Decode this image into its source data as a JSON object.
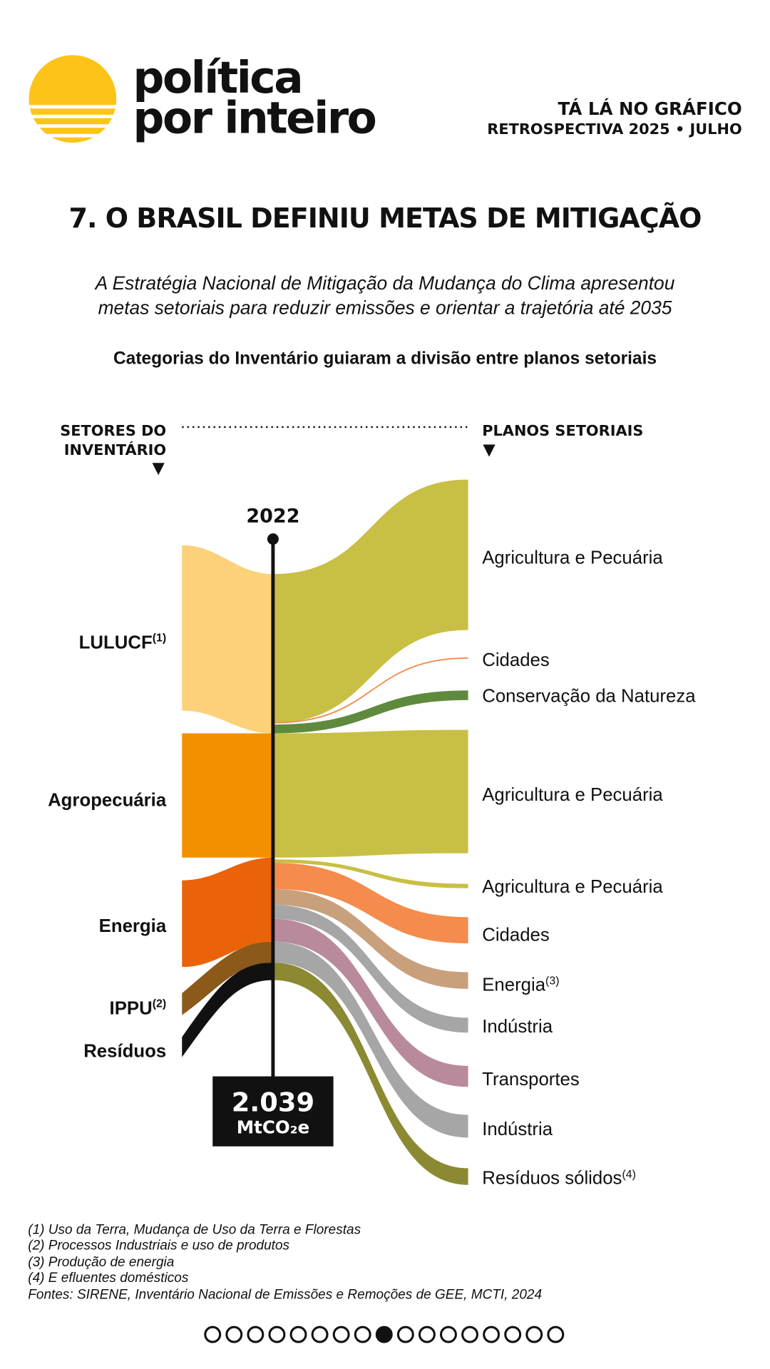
{
  "header": {
    "brand": [
      "política",
      "por inteiro"
    ],
    "kicker": "TÁ LÁ NO GRÁFICO",
    "series": "RETROSPECTIVA 2025 • JULHO"
  },
  "title": "7. O BRASIL DEFINIU METAS DE MITIGAÇÃO",
  "subtitle": [
    "A Estratégia Nacional de Mitigação da Mudança do Clima apresentou",
    "metas setoriais para reduzir emissões e orientar a trajetória até 2035"
  ],
  "diagram_title": "Categorias do Inventário guiaram a divisão entre planos setoriais",
  "diagram": {
    "left_header": [
      "SETORES DO",
      "INVENTÁRIO"
    ],
    "right_header": "PLANOS SETORIAIS",
    "year": "2022",
    "total": {
      "value": "2.039",
      "unit": "MtCO₂e"
    },
    "left_nodes": [
      {
        "label": "LULUCF",
        "note": "(1)"
      },
      {
        "label": "Agropecuária"
      },
      {
        "label": "Energia"
      },
      {
        "label": "IPPU",
        "note": "(2)"
      },
      {
        "label": "Resíduos"
      }
    ],
    "right_nodes": [
      {
        "label": "Agricultura e Pecuária"
      },
      {
        "label": "Cidades"
      },
      {
        "label": "Conservação da Natureza"
      },
      {
        "label": "Agricultura e Pecuária"
      },
      {
        "label": "Agricultura e Pecuária"
      },
      {
        "label": "Cidades"
      },
      {
        "label": "Energia",
        "note": "(3)"
      },
      {
        "label": "Indústria"
      },
      {
        "label": "Transportes"
      },
      {
        "label": "Indústria"
      },
      {
        "label": "Resíduos sólidos",
        "note": "(4)"
      }
    ]
  },
  "footnotes": [
    "(1) Uso da Terra, Mudança de Uso da Terra e Florestas",
    "(2) Processos Industriais e uso de produtos",
    "(3) Produção de energia",
    "(4) E efluentes domésticos",
    "Fontes: SIRENE, Inventário Nacional de Emissões e Remoções de GEE, MCTI, 2024"
  ]
}
